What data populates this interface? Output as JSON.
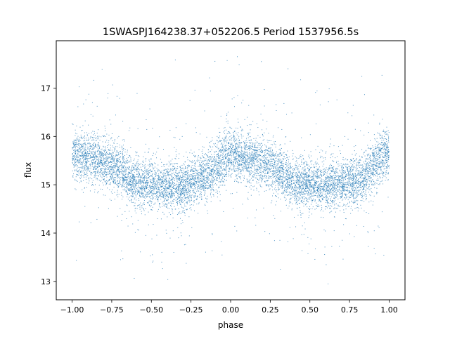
{
  "chart_data": {
    "type": "scatter",
    "title": "1SWASPJ164238.37+052206.5 Period 1537956.5s",
    "xlabel": "phase",
    "ylabel": "flux",
    "xlim": [
      -1.1,
      1.1
    ],
    "ylim": [
      12.62,
      17.98
    ],
    "xticks": [
      -1.0,
      -0.75,
      -0.5,
      -0.25,
      0.0,
      0.25,
      0.5,
      0.75,
      1.0
    ],
    "xtick_labels": [
      "−1.00",
      "−0.75",
      "−0.50",
      "−0.25",
      "0.00",
      "0.25",
      "0.50",
      "0.75",
      "1.00"
    ],
    "yticks": [
      13,
      14,
      15,
      16,
      17
    ],
    "ytick_labels": [
      "13",
      "14",
      "15",
      "16",
      "17"
    ],
    "grid": false,
    "marker_color": "#1f77b4",
    "light_curve": {
      "phase": [
        -1.0,
        -0.95,
        -0.9,
        -0.85,
        -0.8,
        -0.75,
        -0.7,
        -0.65,
        -0.6,
        -0.55,
        -0.5,
        -0.45,
        -0.4,
        -0.35,
        -0.3,
        -0.25,
        -0.2,
        -0.15,
        -0.1,
        -0.05,
        0.0,
        0.05,
        0.1,
        0.15,
        0.2,
        0.25,
        0.3,
        0.35,
        0.4,
        0.45,
        0.5,
        0.55,
        0.6,
        0.65,
        0.7,
        0.75,
        0.8,
        0.85,
        0.9,
        0.95,
        1.0
      ],
      "median_flux": [
        15.7,
        15.6,
        15.55,
        15.5,
        15.45,
        15.4,
        15.3,
        15.15,
        15.05,
        15.0,
        15.0,
        15.0,
        14.95,
        15.0,
        15.0,
        15.05,
        15.1,
        15.2,
        15.35,
        15.55,
        15.7,
        15.6,
        15.55,
        15.5,
        15.45,
        15.4,
        15.3,
        15.15,
        15.05,
        15.0,
        15.0,
        15.0,
        14.95,
        15.0,
        15.0,
        15.05,
        15.1,
        15.2,
        15.35,
        15.55,
        15.7
      ],
      "flux_scatter": 0.25,
      "n_points": 9000,
      "flux_min": 12.85,
      "flux_max": 17.75
    }
  }
}
